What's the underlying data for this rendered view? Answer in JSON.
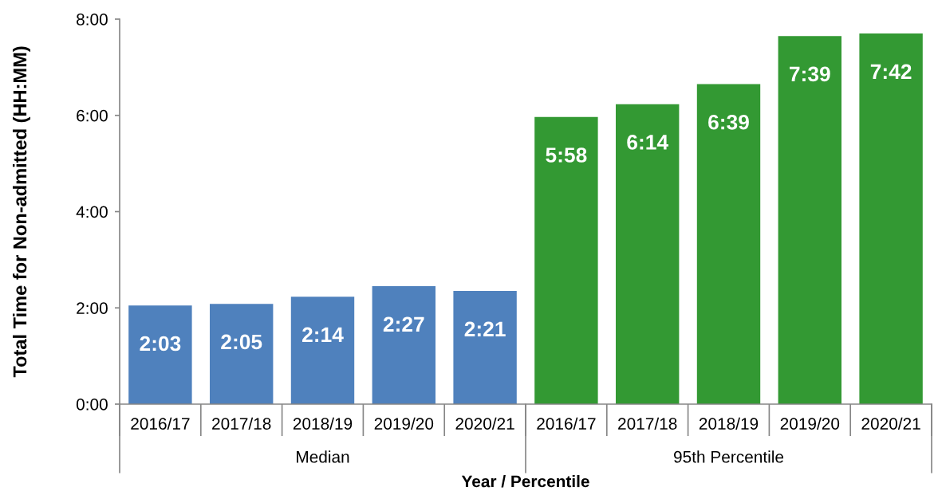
{
  "chart_data": {
    "type": "bar",
    "ylabel": "Total Time for Non-admitted (HH:MM)",
    "xlabel": "Year / Percentile",
    "categories": [
      "2016/17",
      "2017/18",
      "2018/19",
      "2019/20",
      "2020/21",
      "2016/17",
      "2017/18",
      "2018/19",
      "2019/20",
      "2020/21"
    ],
    "series": [
      {
        "name": "Median",
        "color": "#4f81bd",
        "values": [
          2.05,
          2.0833,
          2.2333,
          2.45,
          2.35,
          null,
          null,
          null,
          null,
          null
        ],
        "value_labels": [
          "2:03",
          "2:05",
          "2:14",
          "2:27",
          "2:21",
          null,
          null,
          null,
          null,
          null
        ]
      },
      {
        "name": "95th Percentile",
        "color": "#339933",
        "values": [
          null,
          null,
          null,
          null,
          null,
          5.9667,
          6.2333,
          6.65,
          7.65,
          7.7
        ],
        "value_labels": [
          null,
          null,
          null,
          null,
          null,
          "5:58",
          "6:14",
          "6:39",
          "7:39",
          "7:42"
        ]
      }
    ],
    "ylim": [
      0,
      8
    ],
    "yticks": [
      {
        "value": 0,
        "label": "0:00"
      },
      {
        "value": 2,
        "label": "2:00"
      },
      {
        "value": 4,
        "label": "4:00"
      },
      {
        "value": 6,
        "label": "6:00"
      },
      {
        "value": 8,
        "label": "8:00"
      }
    ]
  }
}
